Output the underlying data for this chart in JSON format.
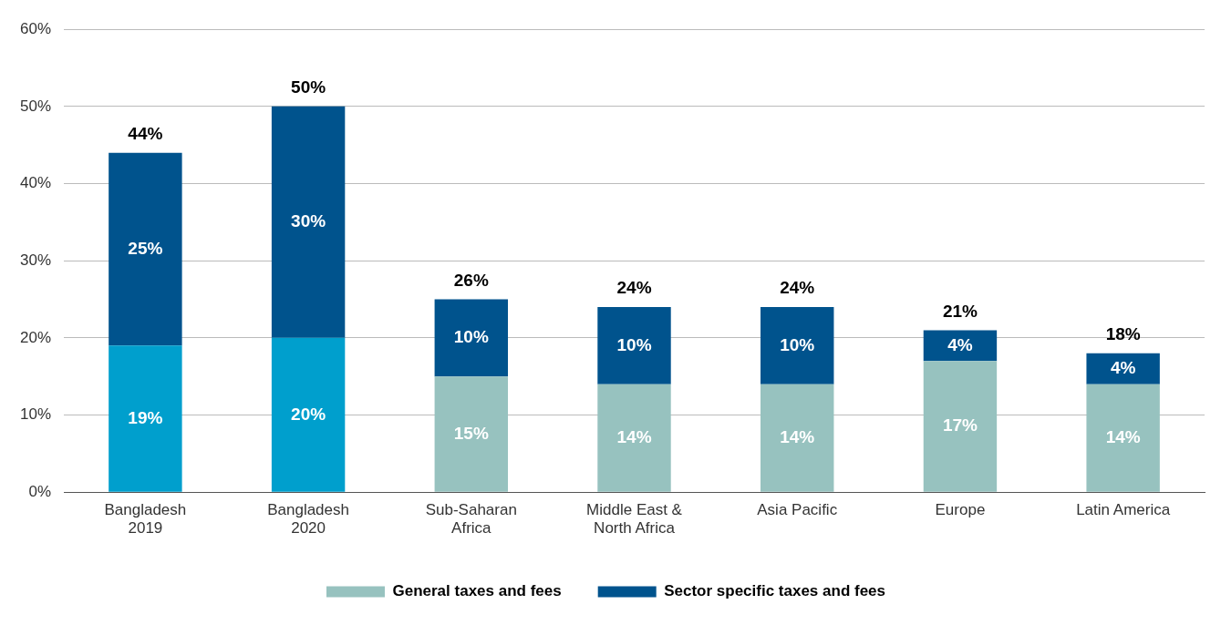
{
  "chart_data": {
    "type": "bar",
    "stacked": true,
    "categories": [
      "Bangladesh\n2019",
      "Bangladesh\n2020",
      "Sub-Saharan\nAfrica",
      "Middle East &\nNorth Africa",
      "Asia Pacific",
      "Europe",
      "Latin America"
    ],
    "series": [
      {
        "name": "General taxes and fees",
        "color": "#97c2bf",
        "colors": [
          "#009fcd",
          "#009fcd",
          "#97c2bf",
          "#97c2bf",
          "#97c2bf",
          "#97c2bf",
          "#97c2bf"
        ],
        "values": [
          19,
          20,
          15,
          14,
          14,
          17,
          14
        ],
        "value_labels": [
          "19%",
          "20%",
          "15%",
          "14%",
          "14%",
          "17%",
          "14%"
        ]
      },
      {
        "name": "Sector specific taxes and fees",
        "color": "#00538d",
        "values": [
          25,
          30,
          10,
          10,
          10,
          4,
          4
        ],
        "value_labels": [
          "25%",
          "30%",
          "10%",
          "10%",
          "10%",
          "4%",
          "4%"
        ]
      }
    ],
    "totals": [
      "44%",
      "50%",
      "26%",
      "24%",
      "24%",
      "21%",
      "18%"
    ],
    "ylim": [
      0,
      60
    ],
    "yticks": [
      {
        "value": 0,
        "label": "0%"
      },
      {
        "value": 10,
        "label": "10%"
      },
      {
        "value": 20,
        "label": "20%"
      },
      {
        "value": 30,
        "label": "30%"
      },
      {
        "value": 40,
        "label": "40%"
      },
      {
        "value": 50,
        "label": "50%"
      },
      {
        "value": 60,
        "label": "60%"
      }
    ],
    "grid": "y",
    "legend": "bottom"
  }
}
